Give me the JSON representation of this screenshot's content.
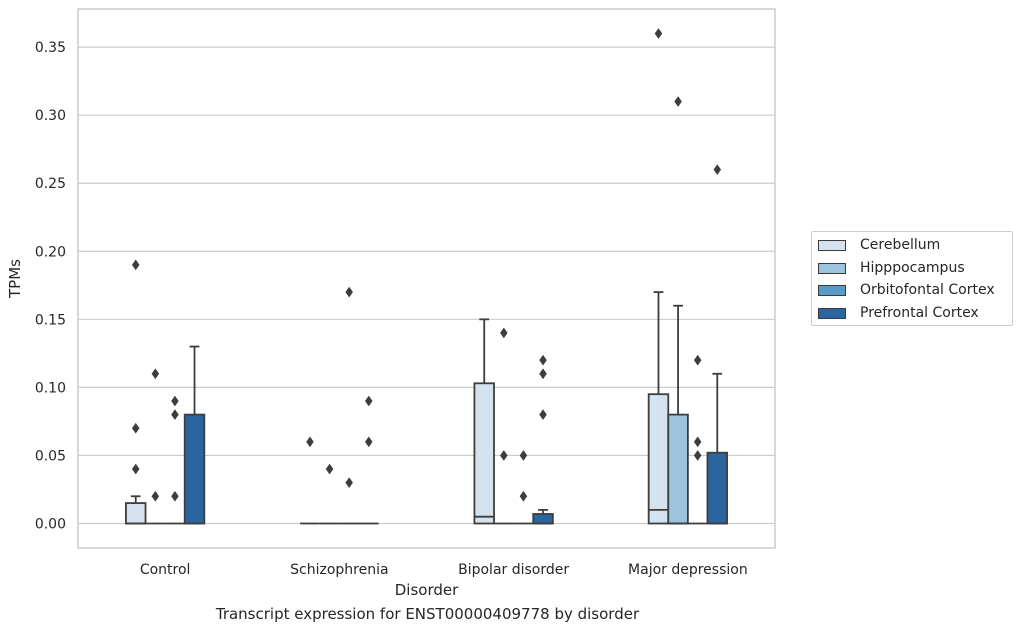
{
  "caption": "Transcript expression for ENST00000409778 by disorder",
  "chart_data": {
    "type": "box",
    "title": "",
    "xlabel": "Disorder",
    "ylabel": "TPMs",
    "ylim": [
      -0.018,
      0.378
    ],
    "yticks": [
      0.0,
      0.05,
      0.1,
      0.15,
      0.2,
      0.25,
      0.3,
      0.35
    ],
    "ytick_labels": [
      "0.00",
      "0.05",
      "0.10",
      "0.15",
      "0.20",
      "0.25",
      "0.30",
      "0.35"
    ],
    "grid": "horizontal",
    "legend_position": "right",
    "categories": [
      "Control",
      "Schizophrenia",
      "Bipolar disorder",
      "Major depression"
    ],
    "series": [
      {
        "name": "Cerebellum",
        "color": "#d5e3f0",
        "boxes": [
          {
            "q1": 0,
            "median": 0,
            "q3": 0.015,
            "whisker_low": 0,
            "whisker_high": 0.02,
            "outliers": [
              0.19,
              0.07,
              0.04
            ]
          },
          {
            "q1": 0,
            "median": 0,
            "q3": 0,
            "whisker_low": 0,
            "whisker_high": 0,
            "outliers": [
              0.06
            ]
          },
          {
            "q1": 0,
            "median": 0.005,
            "q3": 0.103,
            "whisker_low": 0,
            "whisker_high": 0.15,
            "outliers": []
          },
          {
            "q1": 0,
            "median": 0.01,
            "q3": 0.095,
            "whisker_low": 0,
            "whisker_high": 0.17,
            "outliers": [
              0.36
            ]
          }
        ]
      },
      {
        "name": "Hipppocampus",
        "color": "#9dc4dd",
        "boxes": [
          {
            "q1": 0,
            "median": 0,
            "q3": 0,
            "whisker_low": 0,
            "whisker_high": 0,
            "outliers": [
              0.11,
              0.02
            ]
          },
          {
            "q1": 0,
            "median": 0,
            "q3": 0,
            "whisker_low": 0,
            "whisker_high": 0,
            "outliers": [
              0.04
            ]
          },
          {
            "q1": 0,
            "median": 0,
            "q3": 0,
            "whisker_low": 0,
            "whisker_high": 0,
            "outliers": [
              0.14,
              0.05
            ]
          },
          {
            "q1": 0,
            "median": 0,
            "q3": 0.08,
            "whisker_low": 0,
            "whisker_high": 0.16,
            "outliers": [
              0.31
            ]
          }
        ]
      },
      {
        "name": "Orbitofontal Cortex",
        "color": "#5a9ac6",
        "boxes": [
          {
            "q1": 0,
            "median": 0,
            "q3": 0,
            "whisker_low": 0,
            "whisker_high": 0,
            "outliers": [
              0.09,
              0.08,
              0.02
            ]
          },
          {
            "q1": 0,
            "median": 0,
            "q3": 0,
            "whisker_low": 0,
            "whisker_high": 0,
            "outliers": [
              0.17,
              0.03
            ]
          },
          {
            "q1": 0,
            "median": 0,
            "q3": 0,
            "whisker_low": 0,
            "whisker_high": 0,
            "outliers": [
              0.05,
              0.02
            ]
          },
          {
            "q1": 0,
            "median": 0,
            "q3": 0,
            "whisker_low": 0,
            "whisker_high": 0,
            "outliers": [
              0.12,
              0.06,
              0.05
            ]
          }
        ]
      },
      {
        "name": "Prefrontal Cortex",
        "color": "#2a65a0",
        "boxes": [
          {
            "q1": 0,
            "median": 0,
            "q3": 0.08,
            "whisker_low": 0,
            "whisker_high": 0.13,
            "outliers": []
          },
          {
            "q1": 0,
            "median": 0,
            "q3": 0,
            "whisker_low": 0,
            "whisker_high": 0,
            "outliers": [
              0.09,
              0.06
            ]
          },
          {
            "q1": 0,
            "median": 0,
            "q3": 0.007,
            "whisker_low": 0,
            "whisker_high": 0.01,
            "outliers": [
              0.12,
              0.11,
              0.08
            ]
          },
          {
            "q1": 0,
            "median": 0,
            "q3": 0.052,
            "whisker_low": 0,
            "whisker_high": 0.11,
            "outliers": [
              0.26
            ]
          }
        ]
      }
    ]
  }
}
